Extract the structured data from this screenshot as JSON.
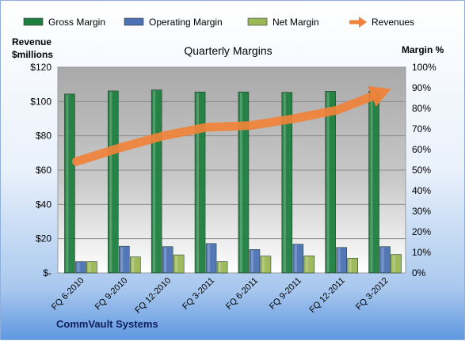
{
  "company": "CommVault Systems",
  "chart_data": {
    "type": "bar",
    "title": "Quarterly Margins",
    "y_left_label": [
      "Revenue",
      "$millions"
    ],
    "y_right_label": "Margin %",
    "categories": [
      "FQ 6-2010",
      "FQ 9-2010",
      "FQ 12-2010",
      "FQ 3-2011",
      "FQ 6-2011",
      "FQ 9-2011",
      "FQ 12-2011",
      "FQ 3-2012"
    ],
    "series": [
      {
        "name": "Gross Margin",
        "axis": "right",
        "color": "#1f7f3f",
        "values": [
          87,
          88.5,
          89,
          88,
          88,
          87.8,
          88.3,
          88.3
        ]
      },
      {
        "name": "Operating Margin",
        "axis": "right",
        "color": "#4c72b4",
        "values": [
          5.5,
          13,
          12.8,
          14.3,
          11.4,
          14,
          12.4,
          12.8
        ]
      },
      {
        "name": "Net Margin",
        "axis": "right",
        "color": "#9bb856",
        "values": [
          5.5,
          7.8,
          8.8,
          5.5,
          8.2,
          8.3,
          7.2,
          9
        ]
      },
      {
        "name": "Revenues",
        "axis": "left",
        "type": "trend-arrow",
        "color": "#f0823a",
        "values": [
          65,
          73,
          80,
          85,
          86,
          90,
          95,
          105
        ]
      }
    ],
    "left_axis": {
      "min": 0,
      "max": 120,
      "ticks": [
        "$-",
        "$20",
        "$40",
        "$60",
        "$80",
        "$100",
        "$120"
      ]
    },
    "right_axis": {
      "min": 0,
      "max": 100,
      "ticks": [
        "0%",
        "10%",
        "20%",
        "30%",
        "40%",
        "50%",
        "60%",
        "70%",
        "80%",
        "90%",
        "100%"
      ]
    },
    "legend_position": "top",
    "grid": true
  }
}
